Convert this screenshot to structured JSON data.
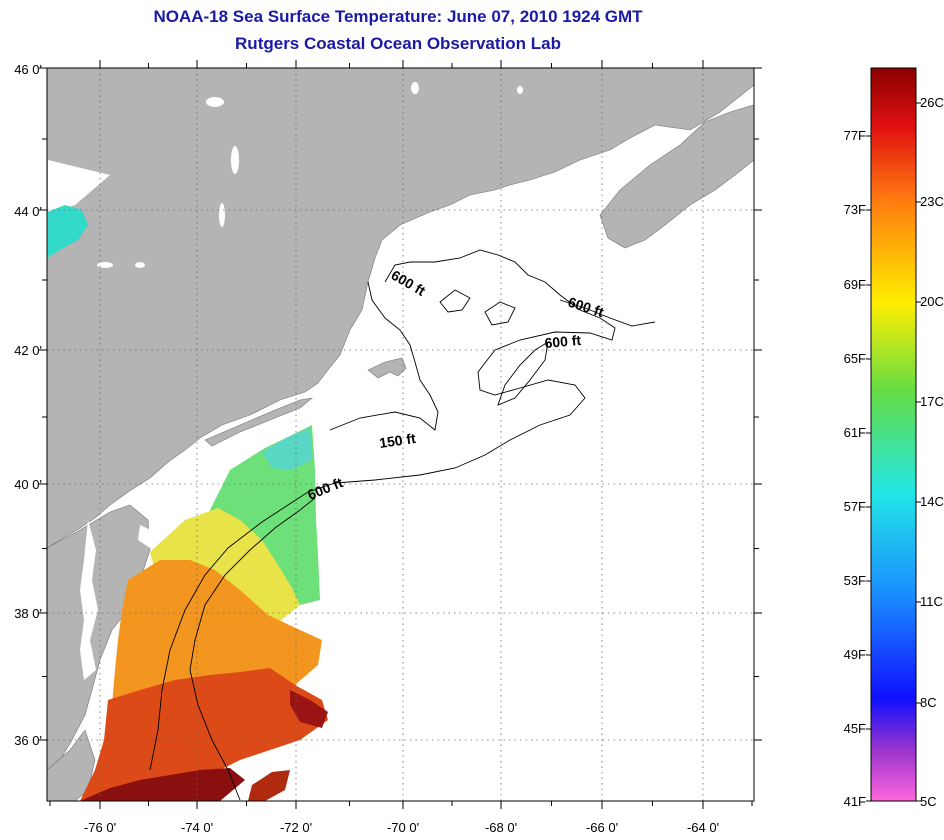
{
  "title": "NOAA-18 Sea Surface Temperature:  June 07, 2010 1924 GMT",
  "subtitle": "Rutgers Coastal Ocean Observation Lab",
  "map": {
    "lat_labels": [
      "46 0'",
      "44 0'",
      "42 0'",
      "40 0'",
      "38 0'",
      "36 0'"
    ],
    "lon_labels": [
      "-76 0'",
      "-74 0'",
      "-72 0'",
      "-70 0'",
      "-68 0'",
      "-66 0'",
      "-64 0'"
    ],
    "contour_labels": [
      "600 ft",
      "600 ft",
      "600 ft",
      "150 ft",
      "600 ft"
    ],
    "colors": {
      "land": "#b4b4b4",
      "ocean": "#ffffff",
      "grid": "#555555",
      "contour": "#000000"
    }
  },
  "colorbar": {
    "fahrenheit": [
      "77F",
      "73F",
      "69F",
      "65F",
      "61F",
      "57F",
      "53F",
      "49F",
      "45F",
      "41F"
    ],
    "celsius": [
      "26C",
      "23C",
      "20C",
      "17C",
      "14C",
      "11C",
      "8C",
      "5C"
    ],
    "range_c": [
      5,
      27
    ]
  }
}
